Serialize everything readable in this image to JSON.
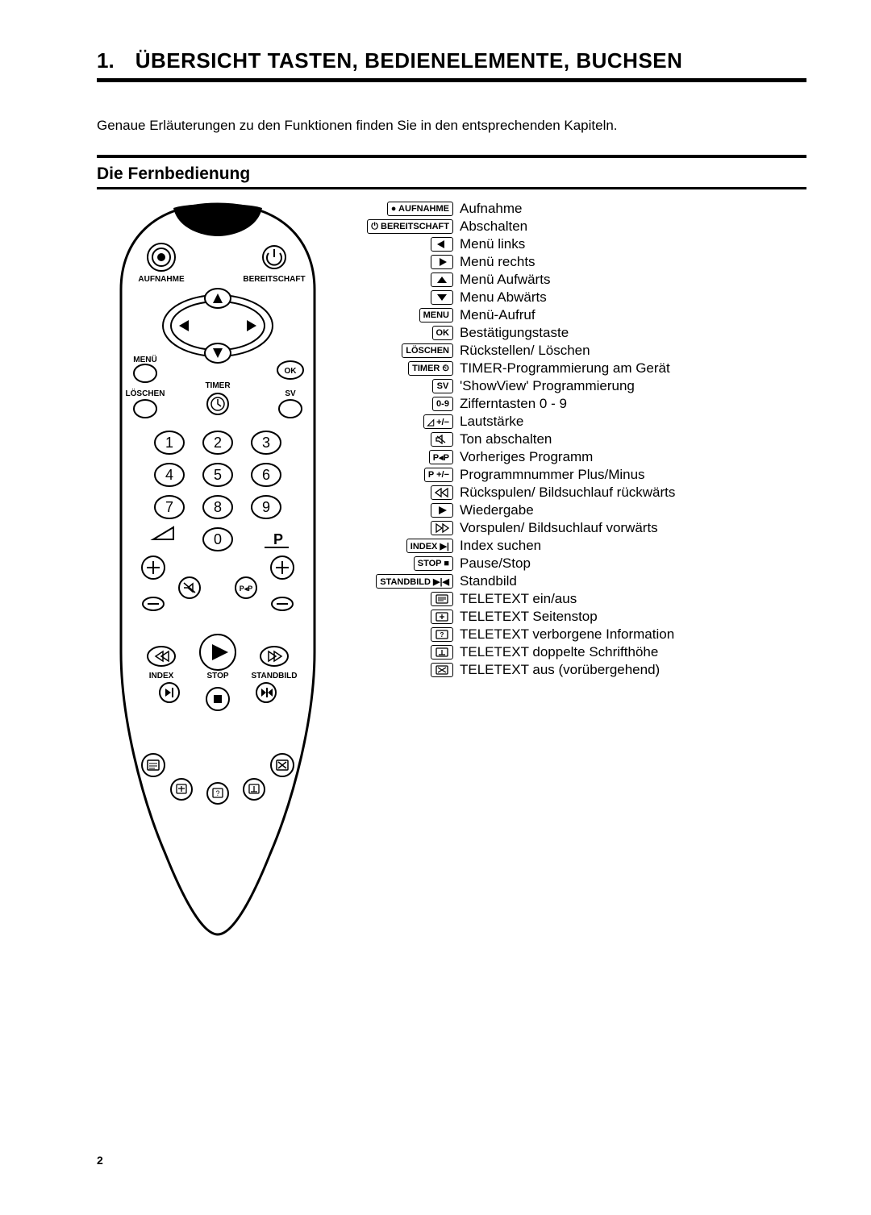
{
  "heading": {
    "num": "1.",
    "title": "ÜBERSICHT TASTEN, BEDIENELEMENTE, BUCHSEN"
  },
  "intro": "Genaue Erläuterungen zu den Funktionen finden Sie in den entsprechenden Kapiteln.",
  "subheading": "Die Fernbedienung",
  "page_number": "2",
  "remote": {
    "top_labels": {
      "left": "AUFNAHME",
      "right": "BEREITSCHAFT"
    },
    "menu_label": "MENÜ",
    "ok_label": "OK",
    "loeschen_label": "LÖSCHEN",
    "timer_label": "TIMER",
    "sv_label": "SV",
    "p_label": "P",
    "index_label": "INDEX",
    "stop_label": "STOP",
    "standbild_label": "STANDBILD",
    "numbers": [
      "1",
      "2",
      "3",
      "4",
      "5",
      "6",
      "7",
      "8",
      "9",
      "0"
    ]
  },
  "legend": [
    {
      "key_text": "● AUFNAHME",
      "desc": "Aufnahme"
    },
    {
      "key_text": "⏻ BEREITSCHAFT",
      "desc": "Abschalten"
    },
    {
      "key_glyph": "tri-left",
      "desc": "Menü links"
    },
    {
      "key_glyph": "tri-right",
      "desc": "Menü rechts"
    },
    {
      "key_glyph": "tri-up",
      "desc": "Menü Aufwärts"
    },
    {
      "key_glyph": "tri-down",
      "desc": "Menu Abwärts"
    },
    {
      "key_text": "MENU",
      "desc": "Menü-Aufruf"
    },
    {
      "key_text": "OK",
      "desc": "Bestätigungstaste"
    },
    {
      "key_text": "LÖSCHEN",
      "desc": "Rückstellen/ Löschen"
    },
    {
      "key_text": "TIMER ⏲",
      "desc": "TIMER-Programmierung am Gerät"
    },
    {
      "key_text": "SV",
      "desc": "'ShowView' Programmierung"
    },
    {
      "key_text": "0-9",
      "desc": "Zifferntasten 0 - 9"
    },
    {
      "key_text": "◿ +/−",
      "desc": "Lautstärke"
    },
    {
      "key_glyph": "mute",
      "desc": "Ton abschalten"
    },
    {
      "key_text": "P◂P",
      "desc": "Vorheriges Programm"
    },
    {
      "key_text": "P +/−",
      "desc": "Programmnummer Plus/Minus"
    },
    {
      "key_glyph": "rewind",
      "desc": "Rückspulen/ Bildsuchlauf rückwärts"
    },
    {
      "key_glyph": "play",
      "desc": "Wiedergabe"
    },
    {
      "key_glyph": "ffwd",
      "desc": "Vorspulen/ Bildsuchlauf vorwärts"
    },
    {
      "key_text": "INDEX ▶|",
      "desc": "Index suchen"
    },
    {
      "key_text": "STOP ■",
      "desc": "Pause/Stop"
    },
    {
      "key_text": "STANDBILD ▶|◀",
      "desc": "Standbild"
    },
    {
      "key_glyph": "ttx-screen",
      "desc": "TELETEXT ein/aus"
    },
    {
      "key_glyph": "ttx-hold",
      "desc": "TELETEXT Seitenstop"
    },
    {
      "key_glyph": "ttx-reveal",
      "desc": "TELETEXT verborgene Information"
    },
    {
      "key_glyph": "ttx-size",
      "desc": "TELETEXT doppelte Schrifthöhe"
    },
    {
      "key_glyph": "ttx-cancel",
      "desc": "TELETEXT aus (vorübergehend)"
    }
  ],
  "colors": {
    "ink": "#000000",
    "paper": "#ffffff"
  },
  "fonts": {
    "heading_pt": 26,
    "body_pt": 17,
    "label_pt": 10
  }
}
